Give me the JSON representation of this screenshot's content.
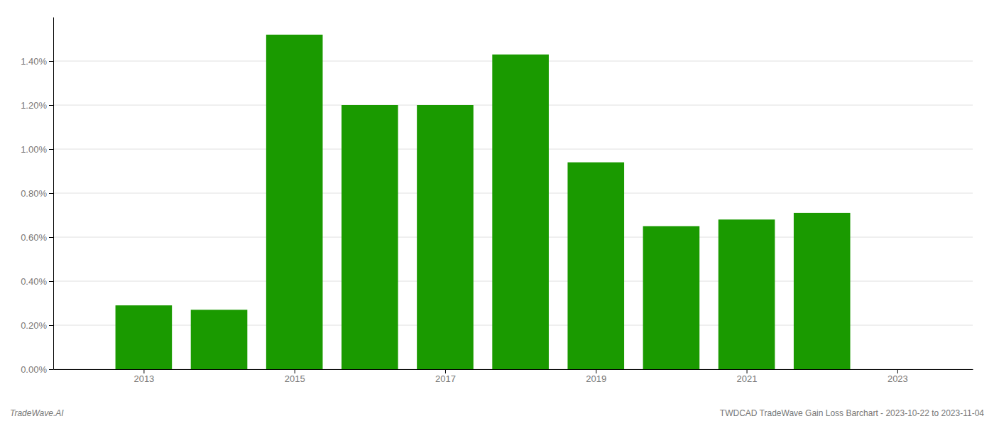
{
  "chart_data": {
    "type": "bar",
    "x": [
      2013,
      2014,
      2015,
      2016,
      2017,
      2018,
      2019,
      2020,
      2021,
      2022
    ],
    "values": [
      0.0029,
      0.0027,
      0.0152,
      0.012,
      0.012,
      0.0143,
      0.0094,
      0.0065,
      0.0068,
      0.0071
    ],
    "color": "#1a9a00",
    "xlim": [
      2011.8,
      2024.0
    ],
    "xticks": [
      2013,
      2015,
      2017,
      2019,
      2021,
      2023
    ],
    "ylim": [
      0,
      0.016
    ],
    "yticks": [
      {
        "value": 0.0,
        "label": "0.00%"
      },
      {
        "value": 0.002,
        "label": "0.20%"
      },
      {
        "value": 0.004,
        "label": "0.40%"
      },
      {
        "value": 0.006,
        "label": "0.60%"
      },
      {
        "value": 0.008,
        "label": "0.80%"
      },
      {
        "value": 0.01,
        "label": "1.00%"
      },
      {
        "value": 0.012,
        "label": "1.20%"
      },
      {
        "value": 0.014,
        "label": "1.40%"
      }
    ],
    "grid": true,
    "annotations": [
      "TradeWave.AI",
      "TWDCAD TradeWave Gain Loss Barchart - 2023-10-22 to 2023-11-04"
    ]
  }
}
